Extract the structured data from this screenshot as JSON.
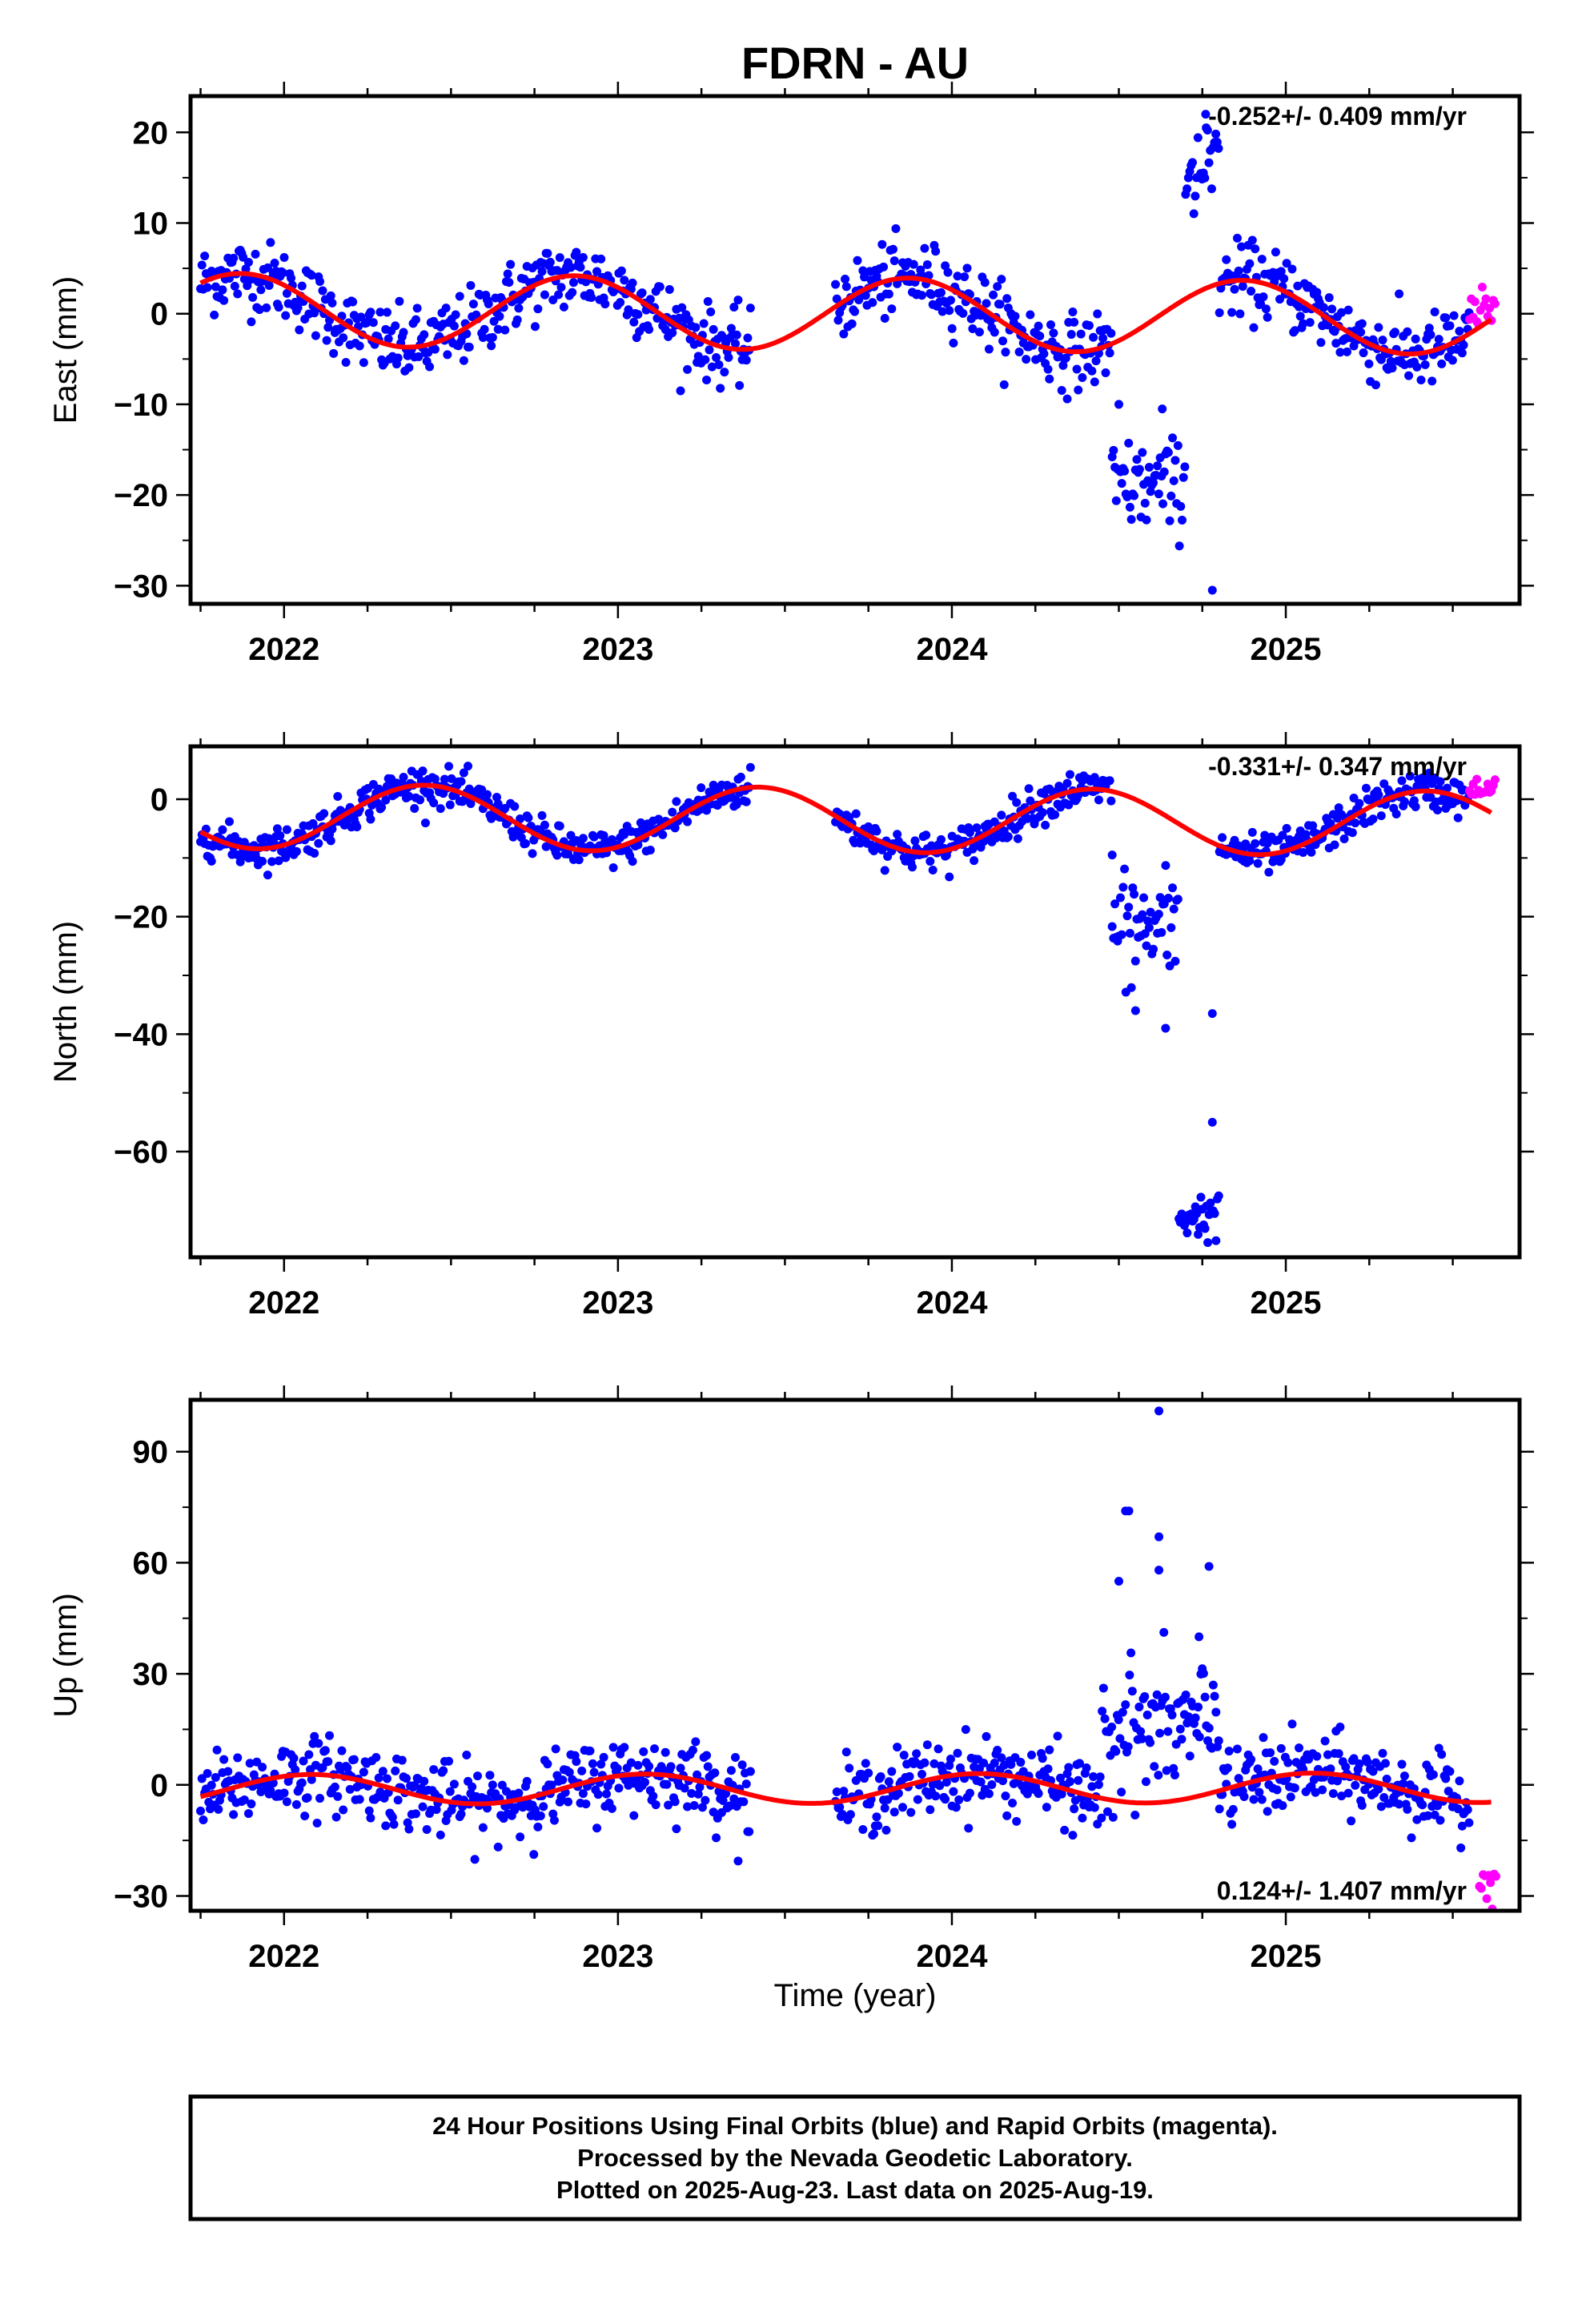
{
  "title": "FDRN - AU",
  "colors": {
    "final": "#0000ff",
    "rapid": "#ff00ff",
    "model": "#ff0000",
    "frame": "#000000"
  },
  "chart_data": [
    {
      "type": "scatter",
      "ylabel": "East (mm)",
      "ylim": [
        -32,
        24
      ],
      "yticks": [
        20,
        10,
        0,
        -10,
        -20,
        -30
      ],
      "ytick_labels": [
        "20",
        "10",
        "0",
        "−10",
        "−20",
        "−30"
      ],
      "rate": "-0.252+/- 0.409 mm/yr",
      "rate_position": "top-right",
      "model": {
        "offset": 0.0,
        "trend": -0.252,
        "amplitude": 4.0,
        "phase_peak_year": 2021.87
      },
      "noise": 2.0,
      "gaps": [
        [
          2023.4,
          2023.65
        ]
      ],
      "anomalies": [
        {
          "x": [
            2024.48,
            2024.7
          ],
          "center": -19,
          "spread": 2.5
        },
        {
          "x": [
            2024.7,
            2024.8
          ],
          "center": 16,
          "spread": 3
        }
      ],
      "outliers": [
        [
          2024.5,
          -10
        ],
        [
          2024.63,
          -10.5
        ],
        [
          2024.78,
          -30.5
        ],
        [
          2024.76,
          22
        ]
      ],
      "rapid": {
        "x": [
          2025.55,
          2025.63
        ],
        "center": 0,
        "spread": 1.2
      }
    },
    {
      "type": "scatter",
      "ylabel": "North (mm)",
      "ylim": [
        -78,
        9
      ],
      "yticks": [
        0,
        -20,
        -40,
        -60
      ],
      "ytick_labels": [
        "0",
        "−20",
        "−40",
        "−60"
      ],
      "rate": "-0.331+/- 0.347 mm/yr",
      "rate_position": "top-right",
      "model": {
        "offset": -3.5,
        "trend": -0.331,
        "amplitude": 5.5,
        "phase_peak_year": 2021.42
      },
      "noise": 1.6,
      "gaps": [
        [
          2023.4,
          2023.65
        ]
      ],
      "anomalies": [
        {
          "x": [
            2024.48,
            2024.68
          ],
          "center": -22,
          "spread": 5
        },
        {
          "x": [
            2024.68,
            2024.8
          ],
          "center": -71,
          "spread": 2
        }
      ],
      "outliers": [
        [
          2024.48,
          -9.5
        ],
        [
          2024.78,
          -36.5
        ],
        [
          2024.78,
          -55
        ],
        [
          2024.55,
          -36
        ],
        [
          2024.64,
          -39
        ]
      ],
      "rapid": {
        "x": [
          2025.55,
          2025.63
        ],
        "center": 1.5,
        "spread": 1.0
      }
    },
    {
      "type": "scatter",
      "ylabel": "Up (mm)",
      "ylim": [
        -34,
        104
      ],
      "yticks": [
        90,
        60,
        30,
        0,
        -30
      ],
      "ytick_labels": [
        "90",
        "60",
        "30",
        "0",
        "−30"
      ],
      "xlabel": "Time (year)",
      "rate": "0.124+/- 1.407 mm/yr",
      "rate_position": "bottom-right",
      "model": {
        "offset": -1.0,
        "trend": 0.124,
        "amplitude": 4.0,
        "phase_peak_year": 2022.08
      },
      "noise": 5.0,
      "gaps": [
        [
          2023.4,
          2023.65
        ]
      ],
      "anomalies": [
        {
          "x": [
            2024.45,
            2024.8
          ],
          "center": 15,
          "spread": 9
        }
      ],
      "outliers": [
        [
          2024.62,
          101
        ],
        [
          2024.52,
          74
        ],
        [
          2024.53,
          74
        ],
        [
          2024.62,
          67
        ],
        [
          2024.62,
          58
        ],
        [
          2024.77,
          59
        ],
        [
          2024.74,
          40
        ],
        [
          2024.5,
          55
        ]
      ],
      "rapid": {
        "x": [
          2025.58,
          2025.63
        ],
        "center": -25,
        "spread": 4
      }
    }
  ],
  "x_axis": {
    "xlim": [
      2021.72,
      2025.7
    ],
    "ticks": [
      2022,
      2023,
      2024,
      2025
    ],
    "tick_labels": [
      "2022",
      "2023",
      "2024",
      "2025"
    ],
    "data_start": 2021.75,
    "data_end": 2025.55
  },
  "footer": {
    "line1": "24 Hour Positions Using Final Orbits (blue) and Rapid Orbits (magenta).",
    "line2": "Processed by the Nevada Geodetic Laboratory.",
    "line3": "Plotted on 2025-Aug-23. Last data on 2025-Aug-19."
  }
}
